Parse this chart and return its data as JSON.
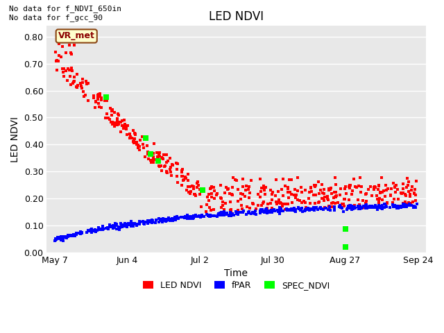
{
  "title": "LED NDVI",
  "xlabel": "Time",
  "ylabel": "LED NDVI",
  "ylim": [
    0.0,
    0.84
  ],
  "top_left_text": "No data for f_NDVI_650in\nNo data for f_gcc_90",
  "vr_met_label": "VR_met",
  "plot_bg_color": "#e8e8e8",
  "fig_bg_color": "#ffffff",
  "series": {
    "LED_NDVI": {
      "color": "#ff0000",
      "label": "LED NDVI"
    },
    "fPAR": {
      "color": "#0000ff",
      "label": "fPAR"
    },
    "SPEC_NDVI": {
      "color": "#00ff00",
      "label": "SPEC_NDVI"
    }
  },
  "xtick_labels": [
    "May 7",
    "Jun 4",
    "Jul 2",
    "Jul 30",
    "Aug 27",
    "Sep 24"
  ],
  "xtick_days": [
    0,
    28,
    56,
    84,
    112,
    140
  ],
  "ytick_values": [
    0.0,
    0.1,
    0.2,
    0.3,
    0.4,
    0.5,
    0.6,
    0.7,
    0.8
  ],
  "grid_color": "#ffffff",
  "legend_fontsize": 9,
  "title_fontsize": 12,
  "tick_fontsize": 9,
  "axis_label_fontsize": 10,
  "spec_x": [
    20,
    35,
    37,
    40,
    57,
    112,
    112
  ],
  "spec_y": [
    0.575,
    0.425,
    0.365,
    0.34,
    0.23,
    0.088,
    0.02
  ]
}
